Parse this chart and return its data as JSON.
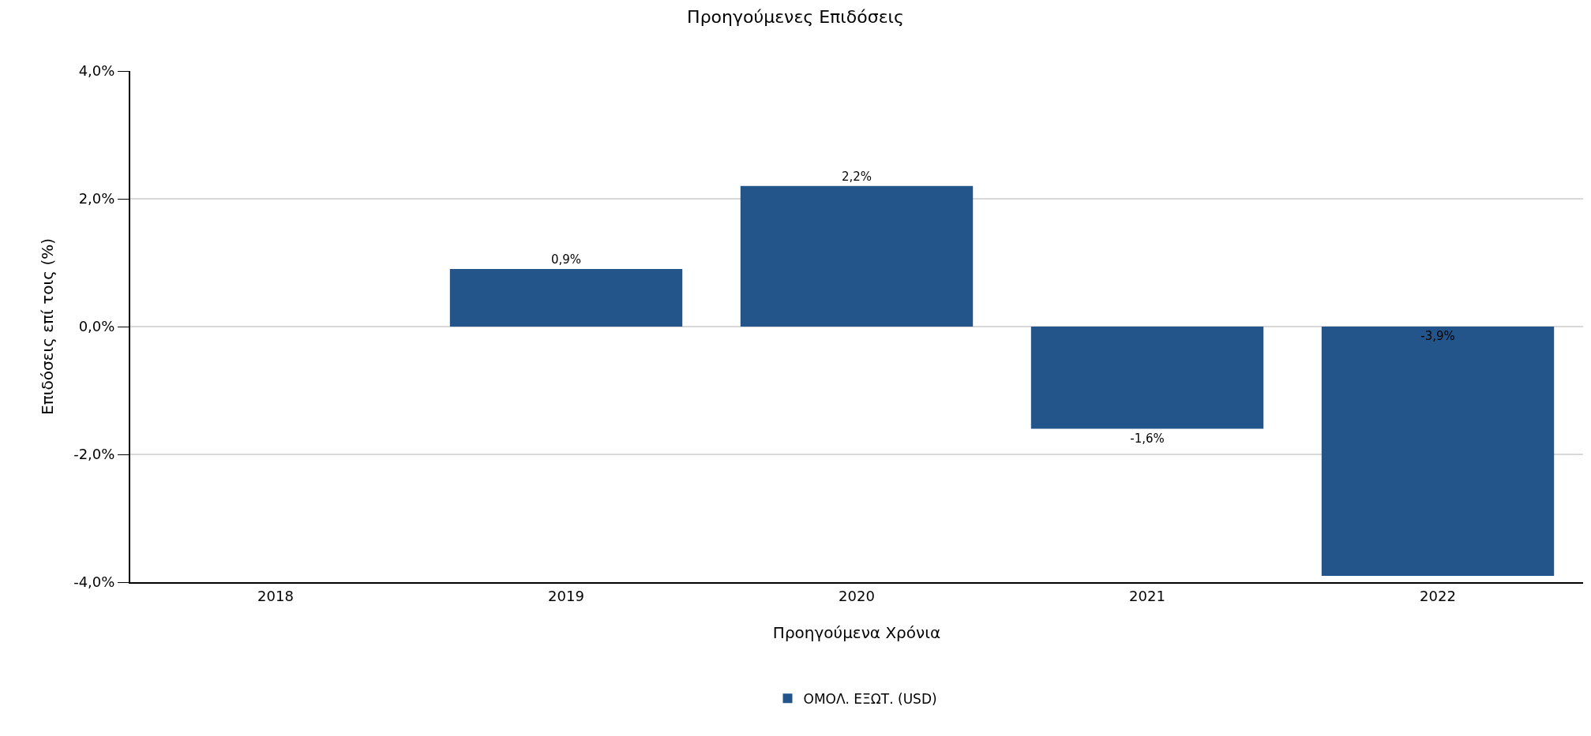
{
  "chart_data": {
    "type": "bar",
    "title": "Προηγούμενες Επιδόσεις",
    "xlabel": "Προηγούμενα Χρόνια",
    "ylabel": "Επιδόσεις επί τοις (%)",
    "categories": [
      "2018",
      "2019",
      "2020",
      "2021",
      "2022"
    ],
    "series": [
      {
        "name": "ΟΜΟΛ. ΕΞΩΤ. (USD)",
        "color": "#23548a",
        "values": [
          null,
          0.9,
          2.2,
          -1.6,
          -3.9
        ],
        "value_labels": [
          null,
          "0,9%",
          "2,2%",
          "-1,6%",
          "-3,9%"
        ]
      }
    ],
    "ylim": [
      -4,
      4
    ],
    "yticks": [
      {
        "value": -4,
        "label": "-4,0%"
      },
      {
        "value": -2,
        "label": "-2,0%"
      },
      {
        "value": 0,
        "label": "0,0%"
      },
      {
        "value": 2,
        "label": "2,0%"
      },
      {
        "value": 4,
        "label": "4,0%"
      }
    ],
    "grid": "y",
    "legend": "bottom"
  }
}
